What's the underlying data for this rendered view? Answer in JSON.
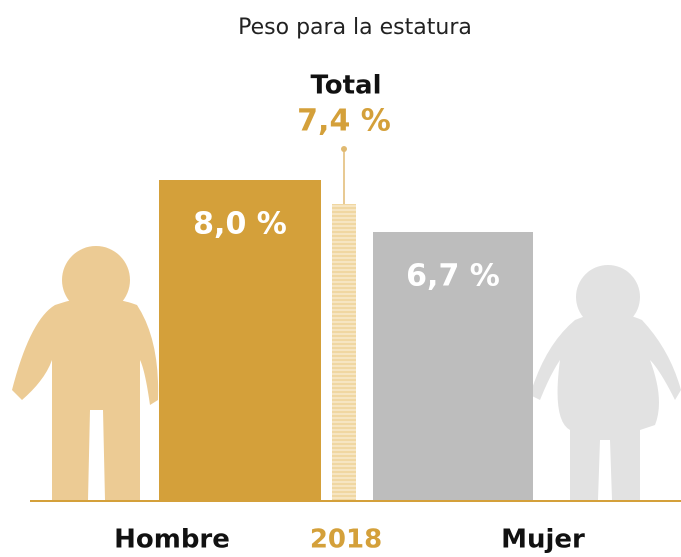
{
  "chart_data": {
    "type": "bar",
    "title": "Peso para la estatura",
    "annotations": [
      "Total"
    ],
    "categories": [
      "Hombre",
      "2018",
      "Mujer"
    ],
    "values": [
      8.0,
      7.4,
      6.7
    ],
    "value_labels": [
      "8,0 %",
      "7,4 %",
      "6,7 %"
    ],
    "colors": [
      "#d4a03a",
      "#f0d7a2",
      "#bdbdbd"
    ],
    "ylim": [
      0,
      12.5
    ]
  }
}
